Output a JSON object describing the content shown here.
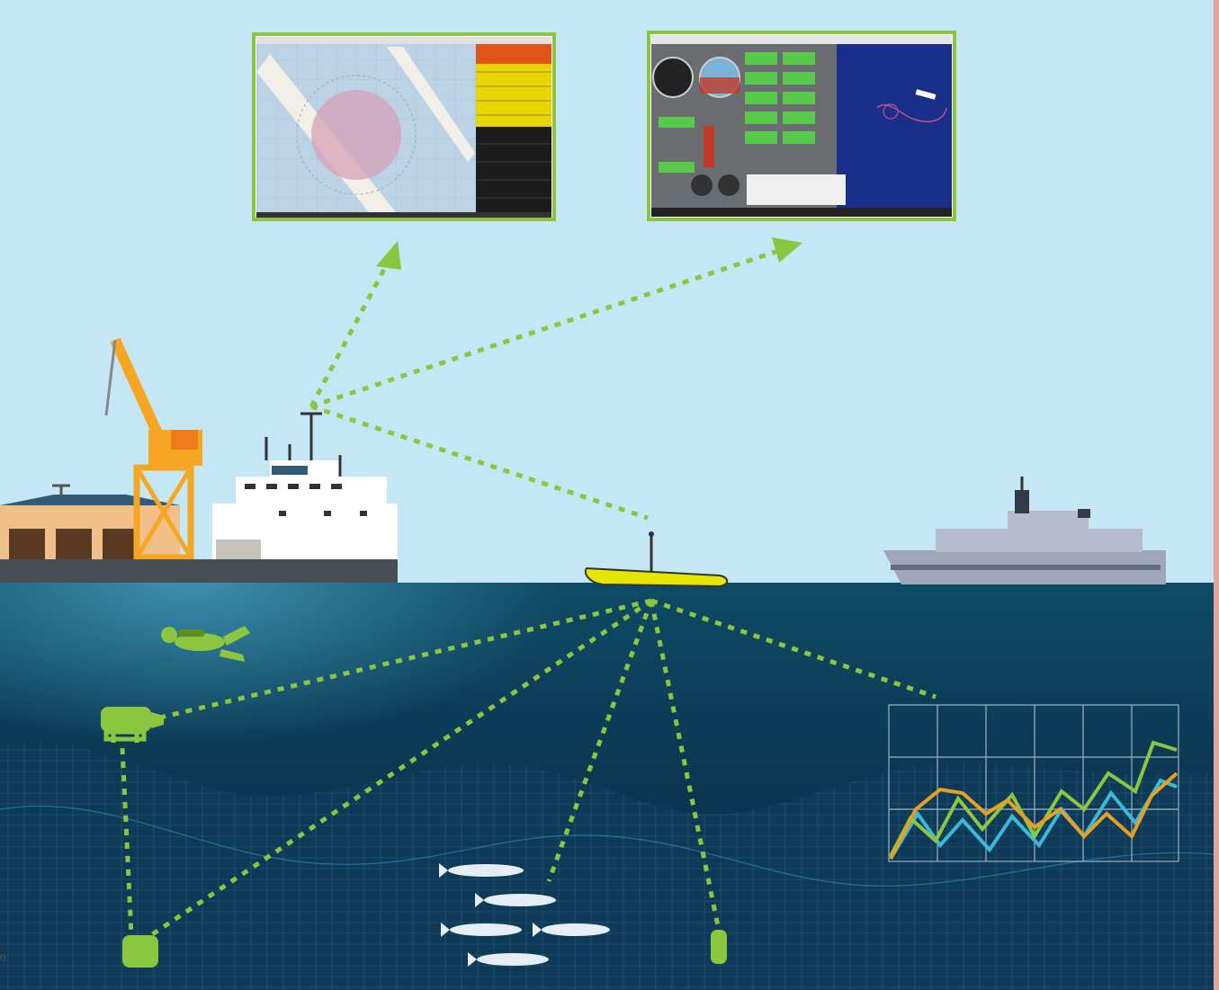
{
  "colors": {
    "sky": "#c5e6f5",
    "ocean_top": "#0f4a64",
    "ocean_bottom": "#062032",
    "link": "#8cc63f",
    "chart_green": "#8cc63f",
    "chart_orange": "#e8a020",
    "chart_cyan": "#3bb9d8",
    "crane": "#f5a623",
    "usv_hull": "#e4e600",
    "warship": "#9ea6b8",
    "warehouse": "#f1c08a",
    "frame_border": "#8cc63f",
    "map_panel_table": "#e8d400",
    "instrument_bg": "#6b6e70",
    "track_bg": "#1a2f8a"
  },
  "icons": {
    "diver": "diver-icon",
    "rov": "rov-icon",
    "seabed_node": "seabed-node-icon",
    "seabed_beacon": "seabed-beacon-icon",
    "usv": "usv-icon",
    "ship_mast": "antenna-icon"
  },
  "corner_text": "o"
}
